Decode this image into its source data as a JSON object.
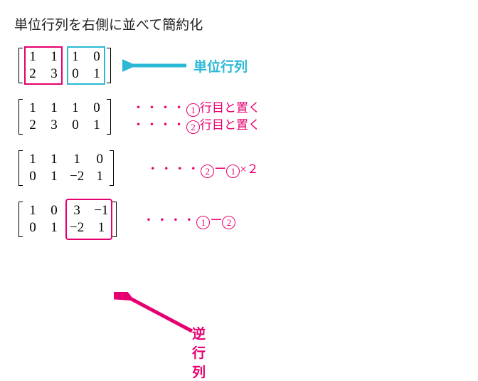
{
  "title": "単位行列を右側に並べて簡約化",
  "colors": {
    "pink": "#e6006f",
    "cyan": "#2bb8d6",
    "text": "#222222"
  },
  "labels": {
    "identity": "単位行列",
    "inverse": "逆行列"
  },
  "matrices": {
    "m1": {
      "cols": 4,
      "cells": [
        "1",
        "1",
        "1",
        "0",
        "2",
        "3",
        "0",
        "1"
      ],
      "leftBox": true,
      "rightBox": true
    },
    "m2": {
      "cols": 4,
      "cells": [
        "1",
        "1",
        "1",
        "0",
        "2",
        "3",
        "0",
        "1"
      ]
    },
    "m3": {
      "cols": 4,
      "cells": [
        "1",
        "1",
        "1",
        "0",
        "0",
        "1",
        "−2",
        "1"
      ]
    },
    "m4": {
      "cols": 4,
      "cells": [
        "1",
        "0",
        "3",
        "−1",
        "0",
        "1",
        "−2",
        "1"
      ],
      "resultBox": true
    }
  },
  "annotations": {
    "a2": {
      "line1": {
        "d": "・・・・",
        "c1": "1",
        "t": "行目と置く"
      },
      "line2": {
        "d": "・・・・",
        "c1": "2",
        "t": "行目と置く"
      }
    },
    "a3": {
      "d": "・・・・",
      "c1": "2",
      "mid": "ー",
      "c2": "1",
      "tail": "×２"
    },
    "a4": {
      "d": "・・・・",
      "c1": "1",
      "mid": "ー",
      "c2": "2"
    }
  }
}
